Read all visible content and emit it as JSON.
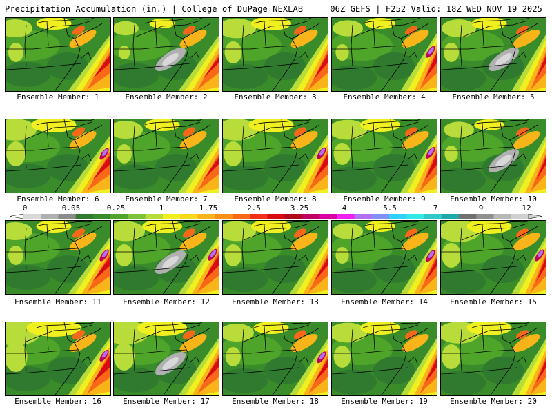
{
  "header": {
    "title_left": "Precipitation Accumulation (in.) | College of DuPage NEXLAB",
    "title_right": "06Z GEFS | F252 Valid: 18Z WED NOV 19 2025"
  },
  "members": [
    {
      "label": "Ensemble Member: 1"
    },
    {
      "label": "Ensemble Member: 2"
    },
    {
      "label": "Ensemble Member: 3"
    },
    {
      "label": "Ensemble Member: 4"
    },
    {
      "label": "Ensemble Member: 5"
    },
    {
      "label": "Ensemble Member: 6"
    },
    {
      "label": "Ensemble Member: 7"
    },
    {
      "label": "Ensemble Member: 8"
    },
    {
      "label": "Ensemble Member: 9"
    },
    {
      "label": "Ensemble Member: 10"
    },
    {
      "label": "Ensemble Member: 11"
    },
    {
      "label": "Ensemble Member: 12"
    },
    {
      "label": "Ensemble Member: 13"
    },
    {
      "label": "Ensemble Member: 14"
    },
    {
      "label": "Ensemble Member: 15"
    },
    {
      "label": "Ensemble Member: 16"
    },
    {
      "label": "Ensemble Member: 17"
    },
    {
      "label": "Ensemble Member: 18"
    },
    {
      "label": "Ensemble Member: 19"
    },
    {
      "label": "Ensemble Member: 20"
    }
  ],
  "colorbar": {
    "tick_labels": [
      "0",
      "0.05",
      "0.25",
      "1",
      "1.75",
      "2.5",
      "3.25",
      "4",
      "5.5",
      "7",
      "9",
      "12"
    ],
    "colors": [
      "#d8d8d8",
      "#b0b0b0",
      "#8a8a8a",
      "#2f7a2f",
      "#3a8c2a",
      "#4ea52a",
      "#7cc238",
      "#b8dc3a",
      "#f0f020",
      "#f8d81a",
      "#f8b418",
      "#f89018",
      "#f86818",
      "#f03018",
      "#d80c10",
      "#b00818",
      "#c00060",
      "#d800a0",
      "#f020f0",
      "#b070f0",
      "#8090f8",
      "#30d0f8",
      "#30e8e8",
      "#30c8c8",
      "#20a8a8",
      "#707070",
      "#909090",
      "#b8b8b8",
      "#d0d0d0"
    ]
  }
}
